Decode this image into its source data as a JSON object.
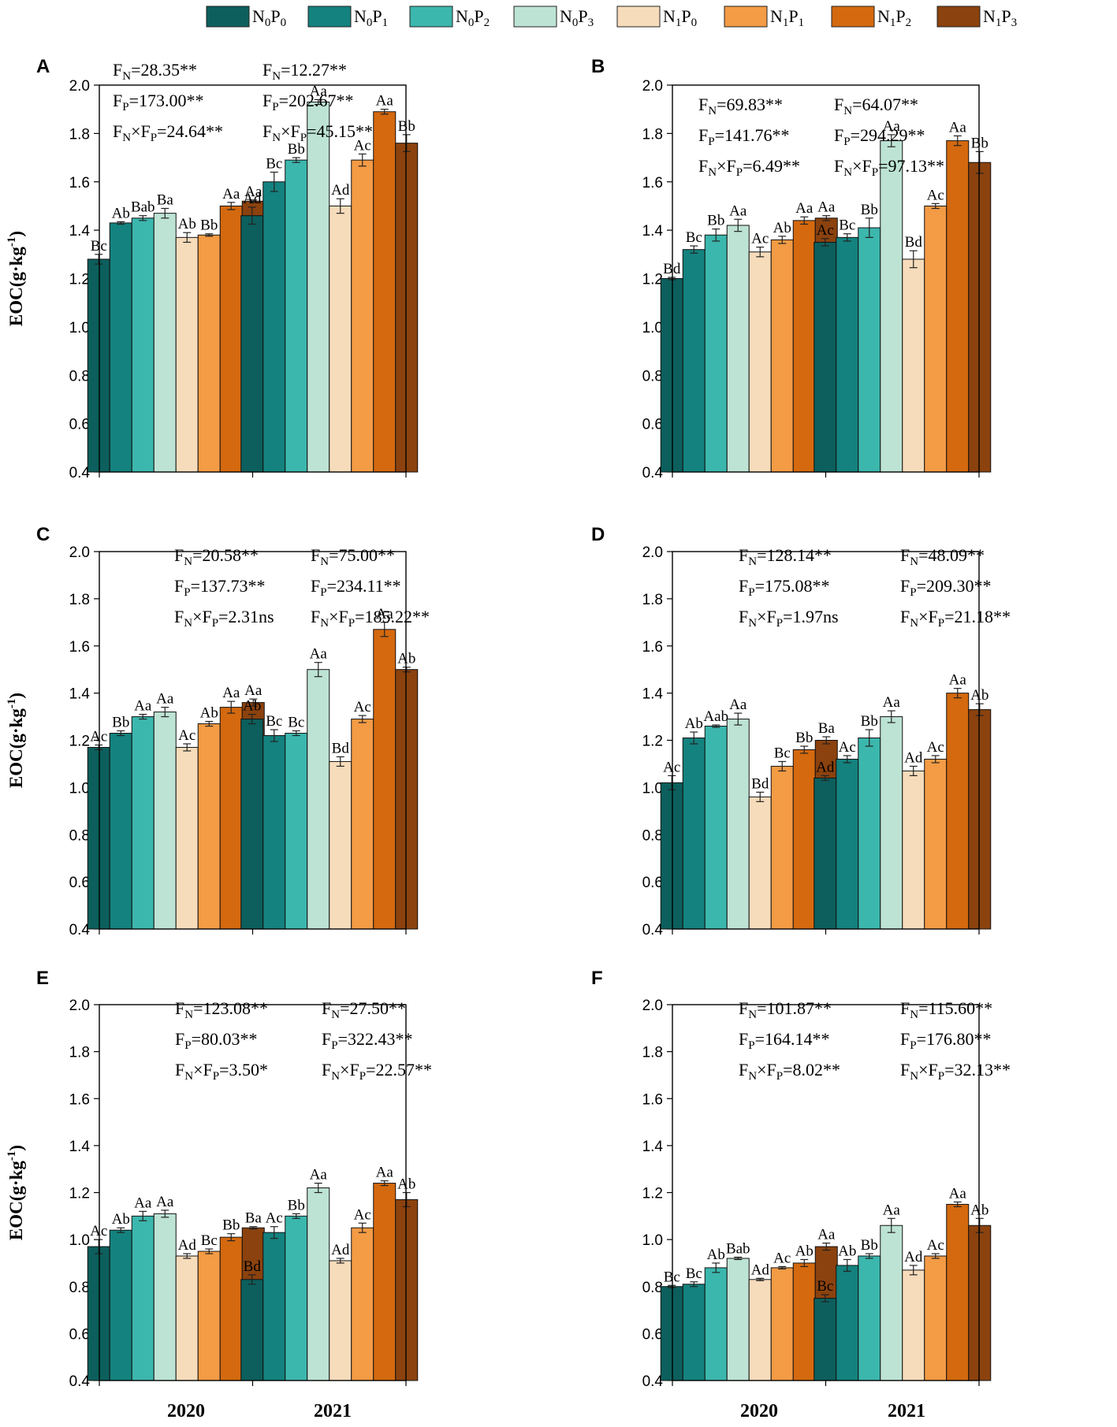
{
  "legend": [
    {
      "sub1": "0",
      "sub2": "0",
      "color": "#0c5f5c"
    },
    {
      "sub1": "0",
      "sub2": "1",
      "color": "#14827e"
    },
    {
      "sub1": "0",
      "sub2": "2",
      "color": "#3cb7ad"
    },
    {
      "sub1": "0",
      "sub2": "3",
      "color": "#bde3d4"
    },
    {
      "sub1": "1",
      "sub2": "0",
      "color": "#f7dcbb"
    },
    {
      "sub1": "1",
      "sub2": "1",
      "color": "#f39b45"
    },
    {
      "sub1": "1",
      "sub2": "2",
      "color": "#d4690f"
    },
    {
      "sub1": "1",
      "sub2": "3",
      "color": "#8b420e"
    }
  ],
  "chart_data": [
    {
      "panel": "A",
      "type": "bar",
      "ylabel": "EOC(g·kg-1)",
      "ylim": [
        0.4,
        2.0
      ],
      "yticks": [
        "0.4",
        "0.6",
        "0.8",
        "1.0",
        "1.2",
        "1.4",
        "1.6",
        "1.8",
        "2.0"
      ],
      "categories": [
        "2020",
        "2021"
      ],
      "series_names": [
        "N0P0",
        "N0P1",
        "N0P2",
        "N0P3",
        "N1P0",
        "N1P1",
        "N1P2",
        "N1P3"
      ],
      "values": [
        [
          1.28,
          1.43,
          1.45,
          1.47,
          1.37,
          1.38,
          1.5,
          1.52
        ],
        [
          1.46,
          1.6,
          1.69,
          1.93,
          1.5,
          1.69,
          1.89,
          1.76
        ]
      ],
      "errors": [
        [
          0.02,
          0.005,
          0.01,
          0.02,
          0.02,
          0.005,
          0.015,
          0.005
        ],
        [
          0.035,
          0.04,
          0.01,
          0.01,
          0.03,
          0.025,
          0.01,
          0.035
        ]
      ],
      "letters": [
        [
          "Bc",
          "Ab",
          "Bab",
          "Ba",
          "Ab",
          "Bb",
          "Aa",
          "Aa"
        ],
        [
          "Ad",
          "Bc",
          "Bb",
          "Aa",
          "Ad",
          "Ac",
          "Aa",
          "Bb"
        ]
      ],
      "stats": [
        {
          "fn": "=28.35**",
          "fp": "=173.00**",
          "fnp": "=24.64**"
        },
        {
          "fn": "=12.27**",
          "fp": "=202.67**",
          "fnp": "=45.15**"
        }
      ]
    },
    {
      "panel": "B",
      "type": "bar",
      "ylabel": "",
      "ylim": [
        0.4,
        2.0
      ],
      "yticks": [
        "0.4",
        "0.6",
        "0.8",
        "1.0",
        "1.2",
        "1.4",
        "1.6",
        "1.8",
        "2.0"
      ],
      "categories": [
        "2020",
        "2021"
      ],
      "series_names": [
        "N0P0",
        "N0P1",
        "N0P2",
        "N0P3",
        "N1P0",
        "N1P1",
        "N1P2",
        "N1P3"
      ],
      "values": [
        [
          1.2,
          1.32,
          1.38,
          1.42,
          1.31,
          1.36,
          1.44,
          1.45
        ],
        [
          1.35,
          1.37,
          1.41,
          1.77,
          1.28,
          1.5,
          1.77,
          1.68
        ]
      ],
      "errors": [
        [
          0.005,
          0.015,
          0.025,
          0.025,
          0.02,
          0.015,
          0.015,
          0.01
        ],
        [
          0.015,
          0.015,
          0.04,
          0.025,
          0.035,
          0.01,
          0.02,
          0.045
        ]
      ],
      "letters": [
        [
          "Bd",
          "Bc",
          "Bb",
          "Aa",
          "Ac",
          "Ab",
          "Aa",
          "Aa"
        ],
        [
          "Ac",
          "Bc",
          "Bb",
          "Aa",
          "Bd",
          "Ac",
          "Aa",
          "Bb"
        ]
      ],
      "stats": [
        {
          "fn": "=69.83**",
          "fp": "=141.76**",
          "fnp": "=6.49**"
        },
        {
          "fn": "=64.07**",
          "fp": "=294.29**",
          "fnp": "=97.13**"
        }
      ]
    },
    {
      "panel": "C",
      "type": "bar",
      "ylabel": "EOC(g·kg-1)",
      "ylim": [
        0.4,
        2.0
      ],
      "yticks": [
        "0.4",
        "0.6",
        "0.8",
        "1.0",
        "1.2",
        "1.4",
        "1.6",
        "1.8",
        "2.0"
      ],
      "categories": [
        "2020",
        "2021"
      ],
      "series_names": [
        "N0P0",
        "N0P1",
        "N0P2",
        "N0P3",
        "N1P0",
        "N1P1",
        "N1P2",
        "N1P3"
      ],
      "values": [
        [
          1.17,
          1.23,
          1.3,
          1.32,
          1.17,
          1.27,
          1.34,
          1.36
        ],
        [
          1.29,
          1.22,
          1.23,
          1.5,
          1.11,
          1.29,
          1.67,
          1.5
        ]
      ],
      "errors": [
        [
          0.01,
          0.01,
          0.01,
          0.02,
          0.015,
          0.01,
          0.025,
          0.015
        ],
        [
          0.02,
          0.025,
          0.01,
          0.03,
          0.02,
          0.015,
          0.03,
          0.01
        ]
      ],
      "letters": [
        [
          "Ac",
          "Bb",
          "Aa",
          "Aa",
          "Ac",
          "Ab",
          "Aa",
          "Aa"
        ],
        [
          "Ab",
          "Bc",
          "Bc",
          "Aa",
          "Bd",
          "Ac",
          "Aa",
          "Ab"
        ]
      ],
      "stats": [
        {
          "fn": "=20.58**",
          "fp": "=137.73**",
          "fnp": "=2.31ns"
        },
        {
          "fn": "=75.00**",
          "fp": "=234.11**",
          "fnp": "=185.22**"
        }
      ]
    },
    {
      "panel": "D",
      "type": "bar",
      "ylabel": "",
      "ylim": [
        0.4,
        2.0
      ],
      "yticks": [
        "0.4",
        "0.6",
        "0.8",
        "1.0",
        "1.2",
        "1.4",
        "1.6",
        "1.8",
        "2.0"
      ],
      "categories": [
        "2020",
        "2021"
      ],
      "series_names": [
        "N0P0",
        "N0P1",
        "N0P2",
        "N0P3",
        "N1P0",
        "N1P1",
        "N1P2",
        "N1P3"
      ],
      "values": [
        [
          1.02,
          1.21,
          1.26,
          1.29,
          0.96,
          1.09,
          1.16,
          1.2
        ],
        [
          1.04,
          1.12,
          1.21,
          1.3,
          1.07,
          1.12,
          1.4,
          1.33
        ]
      ],
      "errors": [
        [
          0.03,
          0.025,
          0.005,
          0.025,
          0.02,
          0.02,
          0.015,
          0.015
        ],
        [
          0.01,
          0.015,
          0.035,
          0.025,
          0.02,
          0.015,
          0.02,
          0.025
        ]
      ],
      "letters": [
        [
          "Ac",
          "Ab",
          "Aab",
          "Aa",
          "Bd",
          "Bc",
          "Bb",
          "Ba"
        ],
        [
          "Ad",
          "Ac",
          "Bb",
          "Aa",
          "Ad",
          "Ac",
          "Aa",
          "Ab"
        ]
      ],
      "stats": [
        {
          "fn": "=128.14**",
          "fp": "=175.08**",
          "fnp": "=1.97ns"
        },
        {
          "fn": "=48.09**",
          "fp": "=209.30**",
          "fnp": "=21.18**"
        }
      ]
    },
    {
      "panel": "E",
      "type": "bar",
      "ylabel": "EOC(g·kg-1)",
      "ylim": [
        0.4,
        2.0
      ],
      "yticks": [
        "0.4",
        "0.6",
        "0.8",
        "1.0",
        "1.2",
        "1.4",
        "1.6",
        "1.8",
        "2.0"
      ],
      "categories": [
        "2020",
        "2021"
      ],
      "series_names": [
        "N0P0",
        "N0P1",
        "N0P2",
        "N0P3",
        "N1P0",
        "N1P1",
        "N1P2",
        "N1P3"
      ],
      "values": [
        [
          0.97,
          1.04,
          1.1,
          1.11,
          0.93,
          0.95,
          1.01,
          1.05
        ],
        [
          0.83,
          1.03,
          1.1,
          1.22,
          0.91,
          1.05,
          1.24,
          1.17
        ]
      ],
      "errors": [
        [
          0.03,
          0.01,
          0.02,
          0.015,
          0.01,
          0.01,
          0.015,
          0.005
        ],
        [
          0.02,
          0.025,
          0.01,
          0.02,
          0.01,
          0.02,
          0.01,
          0.03
        ]
      ],
      "letters": [
        [
          "Ac",
          "Ab",
          "Aa",
          "Aa",
          "Ad",
          "Bc",
          "Bb",
          "Ba"
        ],
        [
          "Bd",
          "Ac",
          "Bb",
          "Aa",
          "Ad",
          "Ac",
          "Aa",
          "Ab"
        ]
      ],
      "stats": [
        {
          "fn": "=123.08**",
          "fp": "=80.03**",
          "fnp": "=3.50*"
        },
        {
          "fn": "=27.50**",
          "fp": "=322.43**",
          "fnp": "=22.57**"
        }
      ]
    },
    {
      "panel": "F",
      "type": "bar",
      "ylabel": "",
      "ylim": [
        0.4,
        2.0
      ],
      "yticks": [
        "0.4",
        "0.6",
        "0.8",
        "1.0",
        "1.2",
        "1.4",
        "1.6",
        "1.8",
        "2.0"
      ],
      "categories": [
        "2020",
        "2021"
      ],
      "series_names": [
        "N0P0",
        "N0P1",
        "N0P2",
        "N0P3",
        "N1P0",
        "N1P1",
        "N1P2",
        "N1P3"
      ],
      "values": [
        [
          0.8,
          0.81,
          0.88,
          0.92,
          0.83,
          0.88,
          0.9,
          0.97
        ],
        [
          0.75,
          0.89,
          0.93,
          1.06,
          0.87,
          0.93,
          1.15,
          1.06
        ]
      ],
      "errors": [
        [
          0.005,
          0.01,
          0.02,
          0.005,
          0.005,
          0.005,
          0.015,
          0.015
        ],
        [
          0.015,
          0.025,
          0.01,
          0.03,
          0.02,
          0.01,
          0.01,
          0.03
        ]
      ],
      "letters": [
        [
          "Bc",
          "Bc",
          "Ab",
          "Bab",
          "Ad",
          "Ac",
          "Ab",
          "Aa"
        ],
        [
          "Bc",
          "Ab",
          "Bb",
          "Aa",
          "Ad",
          "Ac",
          "Aa",
          "Ab"
        ]
      ],
      "stats": [
        {
          "fn": "=101.87**",
          "fp": "=164.14**",
          "fnp": "=8.02**"
        },
        {
          "fn": "=115.60**",
          "fp": "=176.80**",
          "fnp": "=32.13**"
        }
      ]
    }
  ],
  "x_labels": {
    "left": [
      "2020",
      "2021"
    ],
    "right": [
      "2020",
      "2021"
    ]
  }
}
